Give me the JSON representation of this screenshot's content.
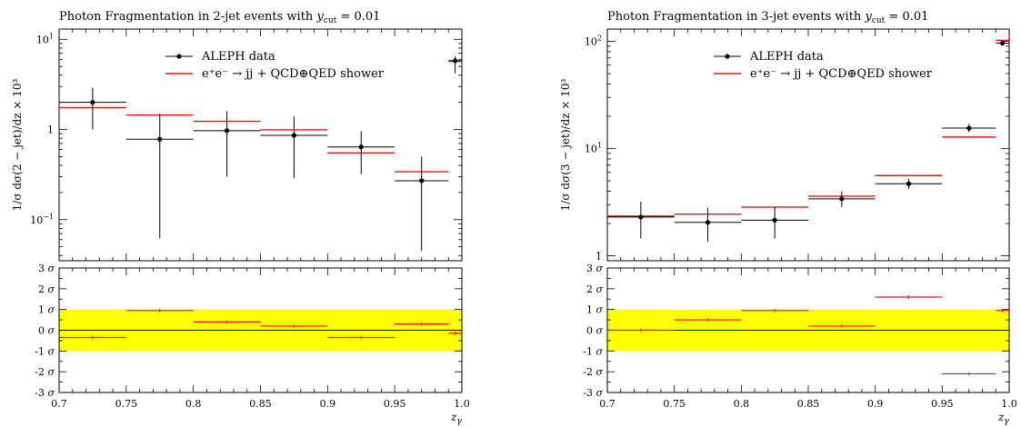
{
  "chart_data": [
    {
      "type": "scatter",
      "title": "Photon Fragmentation in 2-jet events with y_cut = 0.01",
      "ylabel": "1/σ dσ(2 − jet)/dz × 10³",
      "xlabel": "z_γ",
      "xlim": [
        0.7,
        1.0
      ],
      "ylog": true,
      "ylim": [
        0.035,
        13
      ],
      "y_tick_labels": [
        "10⁻¹",
        "1",
        "10¹"
      ],
      "x_tick_labels": [
        "0.7",
        "0.75",
        "0.8",
        "0.85",
        "0.9",
        "0.95",
        "1.0"
      ],
      "legend": [
        "ALEPH data",
        "e⁺e⁻ → jj + QCD⊕QED shower"
      ],
      "legend_position": "top-right",
      "series": [
        {
          "name": "ALEPH data",
          "x": [
            0.725,
            0.775,
            0.825,
            0.875,
            0.925,
            0.97,
            0.995
          ],
          "xlo": [
            0.7,
            0.75,
            0.8,
            0.85,
            0.9,
            0.95,
            0.99
          ],
          "xhi": [
            0.75,
            0.8,
            0.85,
            0.9,
            0.95,
            0.99,
            1.0
          ],
          "y": [
            2.0,
            0.78,
            0.97,
            0.86,
            0.64,
            0.27,
            5.8
          ],
          "ylo": [
            1.0,
            0.062,
            0.3,
            0.29,
            0.32,
            0.045,
            4.2
          ],
          "yhi": [
            2.9,
            1.5,
            1.6,
            1.4,
            0.96,
            0.5,
            6.5
          ]
        },
        {
          "name": "e⁺e⁻ → jj + QCD⊕QED shower",
          "xlo": [
            0.7,
            0.75,
            0.8,
            0.85,
            0.9,
            0.95,
            0.99
          ],
          "xhi": [
            0.75,
            0.8,
            0.85,
            0.9,
            0.95,
            0.99,
            1.0
          ],
          "y": [
            1.75,
            1.45,
            1.23,
            0.99,
            0.55,
            0.34,
            5.7
          ]
        }
      ],
      "ratio": {
        "ylabel_ticks": [
          "-3 σ",
          "-2 σ",
          "-1 σ",
          "0 σ",
          "1 σ",
          "2 σ",
          "3 σ"
        ],
        "ylim": [
          -3,
          3
        ],
        "band": [
          -1,
          1
        ],
        "band_color": "#ffff00",
        "xlo": [
          0.7,
          0.75,
          0.8,
          0.85,
          0.9,
          0.95,
          0.99
        ],
        "xhi": [
          0.75,
          0.8,
          0.85,
          0.9,
          0.95,
          0.99,
          1.0
        ],
        "values": [
          -0.35,
          0.95,
          0.4,
          0.2,
          -0.35,
          0.3,
          -0.15
        ]
      }
    },
    {
      "type": "scatter",
      "title": "Photon Fragmentation in 3-jet events with y_cut = 0.01",
      "ylabel": "1/σ dσ(3 − jet)/dz × 10³",
      "xlabel": "z_γ",
      "xlim": [
        0.7,
        1.0
      ],
      "ylog": true,
      "ylim": [
        0.9,
        130
      ],
      "y_tick_labels": [
        "1",
        "10¹",
        "10²"
      ],
      "x_tick_labels": [
        "0.7",
        "0.75",
        "0.8",
        "0.85",
        "0.9",
        "0.95",
        "1.0"
      ],
      "legend": [
        "ALEPH data",
        "e⁺e⁻ → jj + QCD⊕QED shower"
      ],
      "legend_position": "top-right",
      "series": [
        {
          "name": "ALEPH data",
          "x": [
            0.725,
            0.775,
            0.825,
            0.875,
            0.925,
            0.97,
            0.995
          ],
          "xlo": [
            0.7,
            0.75,
            0.8,
            0.85,
            0.9,
            0.95,
            0.99
          ],
          "xhi": [
            0.75,
            0.8,
            0.85,
            0.9,
            0.95,
            0.99,
            1.0
          ],
          "y": [
            2.3,
            2.05,
            2.15,
            3.4,
            4.7,
            15.5,
            96
          ],
          "ylo": [
            1.45,
            1.35,
            1.45,
            2.85,
            4.2,
            14.2,
            91
          ],
          "yhi": [
            3.2,
            2.8,
            2.85,
            4.0,
            5.2,
            17,
            101
          ]
        },
        {
          "name": "e⁺e⁻ → jj + QCD⊕QED shower",
          "xlo": [
            0.7,
            0.75,
            0.8,
            0.85,
            0.9,
            0.95,
            0.99
          ],
          "xhi": [
            0.75,
            0.8,
            0.85,
            0.9,
            0.95,
            0.99,
            1.0
          ],
          "y": [
            2.35,
            2.45,
            2.85,
            3.6,
            5.6,
            12.8,
            102
          ]
        }
      ],
      "ratio": {
        "ylabel_ticks": [
          "-3 σ",
          "-2 σ",
          "-1 σ",
          "0 σ",
          "1 σ",
          "2 σ",
          "3 σ"
        ],
        "ylim": [
          -3,
          3
        ],
        "band": [
          -1,
          1
        ],
        "band_color": "#ffff00",
        "xlo": [
          0.7,
          0.75,
          0.8,
          0.85,
          0.9,
          0.95,
          0.99
        ],
        "xhi": [
          0.75,
          0.8,
          0.85,
          0.9,
          0.95,
          0.99,
          1.0
        ],
        "values": [
          0.0,
          0.5,
          0.95,
          0.2,
          1.6,
          -2.1,
          0.95
        ]
      }
    }
  ],
  "colors": {
    "data": "#000000",
    "mc": "#ee1111",
    "band": "#ffff00"
  }
}
